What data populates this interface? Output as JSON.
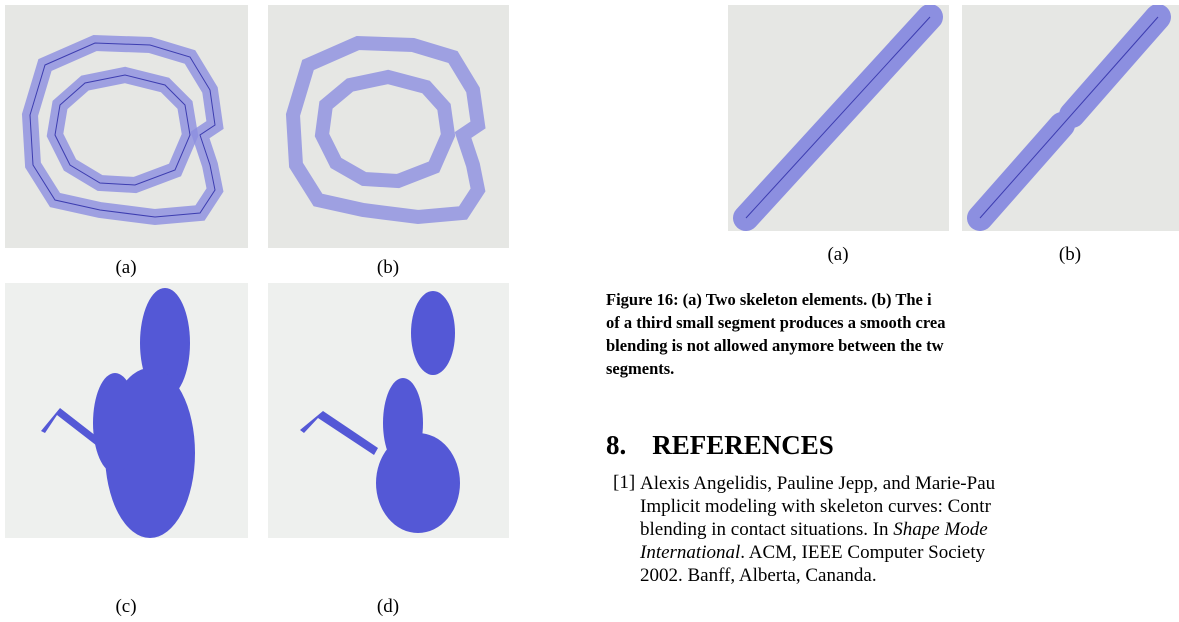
{
  "left_figure": {
    "labels": [
      "(a)",
      "(b)",
      "(c)",
      "(d)"
    ]
  },
  "right_figure": {
    "labels": [
      "(a)",
      "(b)"
    ],
    "caption": [
      "Figure 16: (a) Two skeleton elements. (b) The i",
      "of a third small segment produces a smooth crea",
      "blending is not allowed anymore between the tw",
      "segments."
    ]
  },
  "section": {
    "number": "8.",
    "title": "REFERENCES"
  },
  "references": [
    {
      "number": "[1]",
      "lines": [
        [
          "Alexis Angelidis, Pauline Jepp, and Marie-Pau"
        ],
        [
          "Implicit modeling with skeleton curves: Contr"
        ],
        [
          "blending in contact situations. In ",
          "Shape Mode"
        ],
        [
          "International",
          ". ACM, IEEE Computer Society"
        ],
        [
          "2002. Banff, Alberta, Cananda."
        ]
      ]
    }
  ]
}
